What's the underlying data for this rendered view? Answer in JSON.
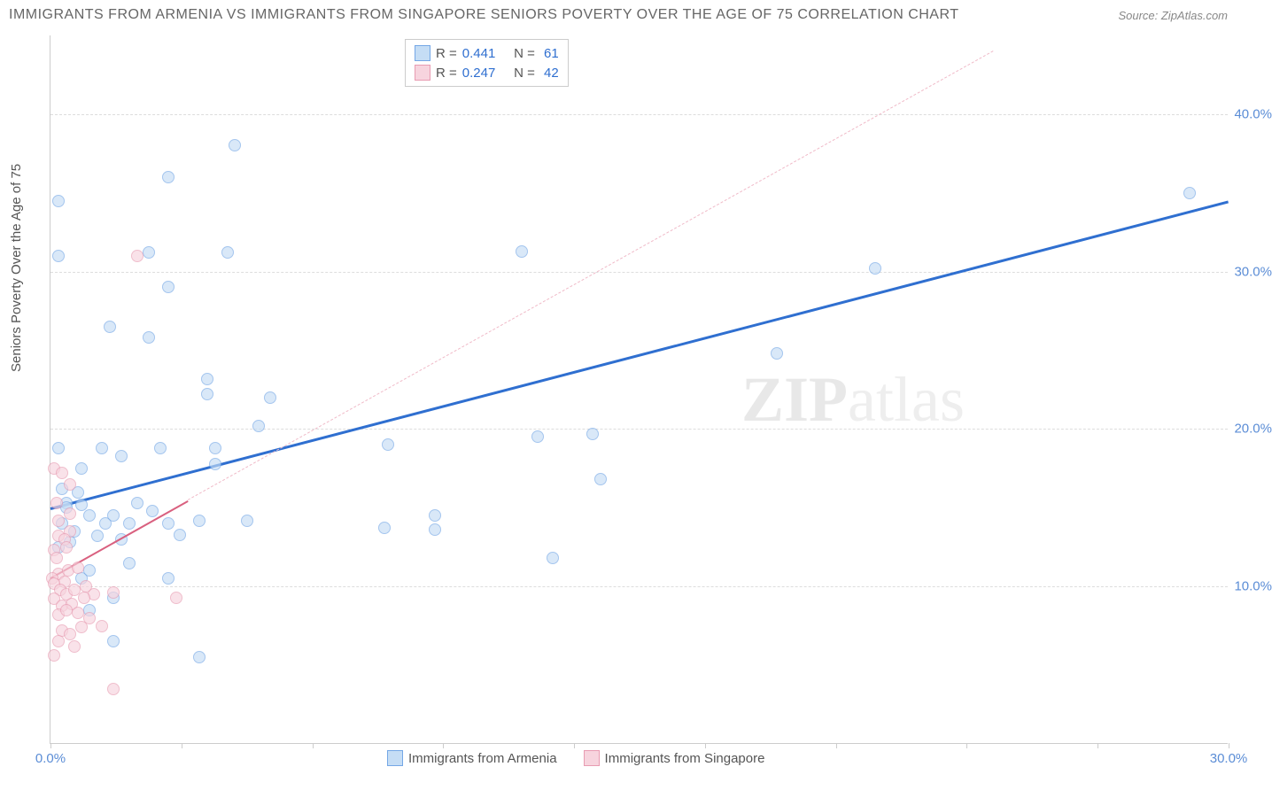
{
  "title": "IMMIGRANTS FROM ARMENIA VS IMMIGRANTS FROM SINGAPORE SENIORS POVERTY OVER THE AGE OF 75 CORRELATION CHART",
  "source": "Source: ZipAtlas.com",
  "ylabel": "Seniors Poverty Over the Age of 75",
  "watermark_zip": "ZIP",
  "watermark_atlas": "atlas",
  "chart": {
    "type": "scatter",
    "xlim": [
      0,
      30
    ],
    "ylim": [
      0,
      45
    ],
    "yticks": [
      10,
      20,
      30,
      40
    ],
    "ytick_labels": [
      "10.0%",
      "20.0%",
      "30.0%",
      "40.0%"
    ],
    "xticks": [
      0,
      3.33,
      6.67,
      10,
      13.33,
      16.67,
      20,
      23.33,
      26.67,
      30
    ],
    "xtick_labels": {
      "0": "0.0%",
      "30": "30.0%"
    },
    "background_color": "#ffffff",
    "grid_color": "#dddddd",
    "series": [
      {
        "name": "Immigrants from Armenia",
        "stroke": "#74a7e6",
        "fill": "#c5ddf5",
        "fill_opacity": 0.65,
        "marker_size": 14,
        "R_label": "R =",
        "R": "0.441",
        "N_label": "N =",
        "N": "61",
        "trend": {
          "x1": 0,
          "y1": 15.0,
          "x2": 30,
          "y2": 34.5,
          "color": "#2f6fd0",
          "width": 3,
          "dash": false
        },
        "points": [
          [
            0.2,
            34.5
          ],
          [
            4.7,
            38.0
          ],
          [
            3.0,
            36.0
          ],
          [
            2.5,
            31.2
          ],
          [
            4.5,
            31.2
          ],
          [
            12.0,
            31.3
          ],
          [
            21.0,
            30.2
          ],
          [
            29.0,
            35.0
          ],
          [
            18.5,
            24.8
          ],
          [
            3.0,
            29.0
          ],
          [
            1.5,
            26.5
          ],
          [
            2.5,
            25.8
          ],
          [
            0.2,
            31.0
          ],
          [
            4.0,
            22.2
          ],
          [
            4.0,
            23.2
          ],
          [
            5.3,
            20.2
          ],
          [
            5.6,
            22.0
          ],
          [
            1.3,
            18.8
          ],
          [
            0.2,
            18.8
          ],
          [
            1.8,
            18.3
          ],
          [
            2.8,
            18.8
          ],
          [
            4.2,
            17.8
          ],
          [
            4.2,
            18.8
          ],
          [
            0.3,
            16.2
          ],
          [
            0.4,
            15.3
          ],
          [
            0.7,
            16.0
          ],
          [
            0.8,
            15.2
          ],
          [
            0.8,
            17.5
          ],
          [
            1.0,
            14.5
          ],
          [
            1.2,
            13.2
          ],
          [
            1.4,
            14.0
          ],
          [
            1.6,
            14.5
          ],
          [
            1.8,
            13.0
          ],
          [
            2.0,
            14.0
          ],
          [
            2.2,
            15.3
          ],
          [
            2.6,
            14.8
          ],
          [
            3.0,
            14.0
          ],
          [
            3.3,
            13.3
          ],
          [
            3.0,
            10.5
          ],
          [
            3.8,
            14.2
          ],
          [
            5.0,
            14.2
          ],
          [
            8.6,
            19.0
          ],
          [
            9.8,
            13.6
          ],
          [
            9.8,
            14.5
          ],
          [
            12.4,
            19.5
          ],
          [
            14.0,
            16.8
          ],
          [
            13.8,
            19.7
          ],
          [
            12.8,
            11.8
          ],
          [
            8.5,
            13.7
          ],
          [
            3.8,
            5.5
          ],
          [
            1.6,
            6.5
          ],
          [
            0.8,
            10.5
          ],
          [
            1.0,
            11.0
          ],
          [
            1.0,
            8.5
          ],
          [
            1.6,
            9.3
          ],
          [
            0.6,
            13.5
          ],
          [
            0.5,
            12.8
          ],
          [
            0.3,
            14.0
          ],
          [
            0.4,
            15.0
          ],
          [
            0.2,
            12.5
          ],
          [
            2.0,
            11.5
          ]
        ]
      },
      {
        "name": "Immigrants from Singapore",
        "stroke": "#e89cb2",
        "fill": "#f7d4de",
        "fill_opacity": 0.65,
        "marker_size": 14,
        "R_label": "R =",
        "R": "0.247",
        "N_label": "N =",
        "N": "42",
        "trend": {
          "x1": 0,
          "y1": 10.6,
          "x2": 3.5,
          "y2": 15.5,
          "color": "#d9607f",
          "width": 2.5,
          "dash": false
        },
        "trend_ext": {
          "x1": 3.5,
          "y1": 15.5,
          "x2": 24,
          "y2": 44,
          "color": "#f0bac8",
          "width": 1,
          "dash": true
        },
        "points": [
          [
            2.2,
            31.0
          ],
          [
            0.1,
            17.5
          ],
          [
            0.3,
            17.2
          ],
          [
            0.5,
            16.5
          ],
          [
            0.15,
            15.3
          ],
          [
            0.2,
            13.2
          ],
          [
            0.5,
            13.5
          ],
          [
            0.2,
            14.2
          ],
          [
            0.35,
            13.0
          ],
          [
            0.1,
            12.3
          ],
          [
            0.4,
            12.5
          ],
          [
            0.15,
            11.8
          ],
          [
            0.2,
            10.8
          ],
          [
            0.35,
            10.3
          ],
          [
            0.05,
            10.5
          ],
          [
            0.45,
            11.0
          ],
          [
            0.1,
            10.2
          ],
          [
            0.25,
            9.8
          ],
          [
            0.4,
            9.5
          ],
          [
            0.6,
            9.8
          ],
          [
            0.1,
            9.2
          ],
          [
            0.3,
            8.8
          ],
          [
            0.55,
            8.9
          ],
          [
            1.1,
            9.5
          ],
          [
            1.6,
            9.6
          ],
          [
            3.2,
            9.3
          ],
          [
            0.2,
            8.2
          ],
          [
            0.4,
            8.5
          ],
          [
            0.7,
            8.3
          ],
          [
            1.0,
            8.0
          ],
          [
            1.3,
            7.5
          ],
          [
            0.3,
            7.2
          ],
          [
            0.5,
            7.0
          ],
          [
            0.8,
            7.4
          ],
          [
            0.2,
            6.5
          ],
          [
            0.6,
            6.2
          ],
          [
            0.08,
            5.6
          ],
          [
            1.6,
            3.5
          ],
          [
            0.9,
            10.0
          ],
          [
            0.7,
            11.2
          ],
          [
            0.5,
            14.6
          ],
          [
            0.85,
            9.3
          ]
        ]
      }
    ],
    "legend_bottom": [
      {
        "label": "Immigrants from Armenia",
        "stroke": "#74a7e6",
        "fill": "#c5ddf5"
      },
      {
        "label": "Immigrants from Singapore",
        "stroke": "#e89cb2",
        "fill": "#f7d4de"
      }
    ]
  }
}
